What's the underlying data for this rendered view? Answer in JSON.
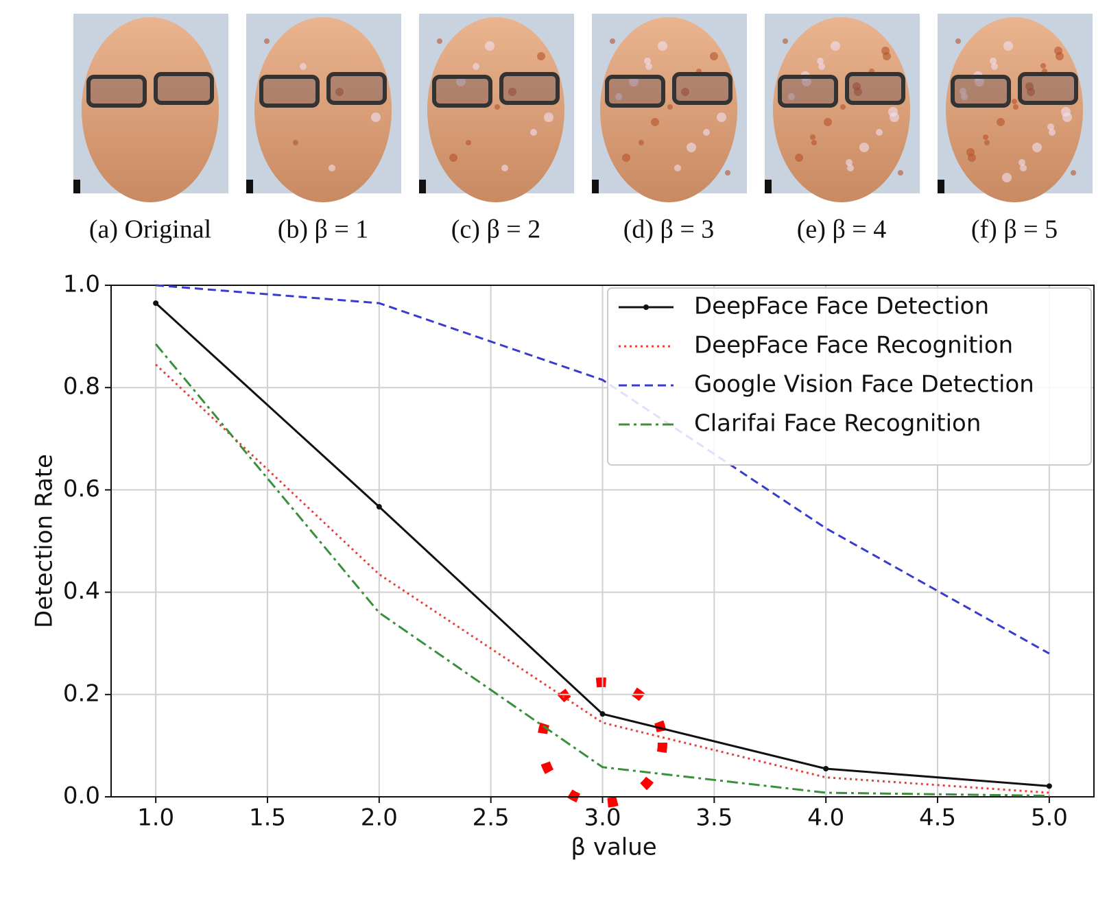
{
  "panels": {
    "captions": [
      "(a) Original",
      "(b) β = 1",
      "(c) β = 2",
      "(d) β = 3",
      "(e) β = 4",
      "(f) β = 5"
    ]
  },
  "chart_data": {
    "type": "line",
    "xlabel": "β value",
    "ylabel": "Detection Rate",
    "x": [
      1,
      2,
      3,
      4,
      5
    ],
    "series": [
      {
        "name": "DeepFace Face Detection",
        "color": "#111111",
        "linestyle": "solid",
        "marker": ".",
        "values": [
          0.965,
          0.567,
          0.162,
          0.055,
          0.021
        ]
      },
      {
        "name": "DeepFace Face Recognition",
        "color": "#e8403a",
        "linestyle": "dotted",
        "values": [
          0.845,
          0.435,
          0.145,
          0.038,
          0.008
        ]
      },
      {
        "name": "Google Vision Face Detection",
        "color": "#3a3ad0",
        "linestyle": "dashed",
        "values": [
          1.0,
          0.965,
          0.815,
          0.525,
          0.28
        ]
      },
      {
        "name": "Clarifai Face Recognition",
        "color": "#3a8f3a",
        "linestyle": "dashdot",
        "values": [
          0.885,
          0.36,
          0.058,
          0.008,
          0.002
        ]
      }
    ],
    "xlim": [
      0.8,
      5.2
    ],
    "xticks": [
      {
        "value": 1,
        "label": "1.0"
      },
      1.5,
      {
        "value": 2,
        "label": "2.0"
      },
      2.5,
      {
        "value": 3,
        "label": "3.0"
      },
      3.5,
      {
        "value": 4,
        "label": "4.0"
      },
      4.5,
      {
        "value": 5,
        "label": "5.0"
      }
    ],
    "ylim": [
      0,
      1
    ],
    "yticks": [
      {
        "value": 0,
        "label": "0.0"
      },
      0.2,
      0.4,
      0.6,
      0.8,
      {
        "value": 1,
        "label": "1.0"
      }
    ],
    "grid": true,
    "legend": "upper right"
  }
}
